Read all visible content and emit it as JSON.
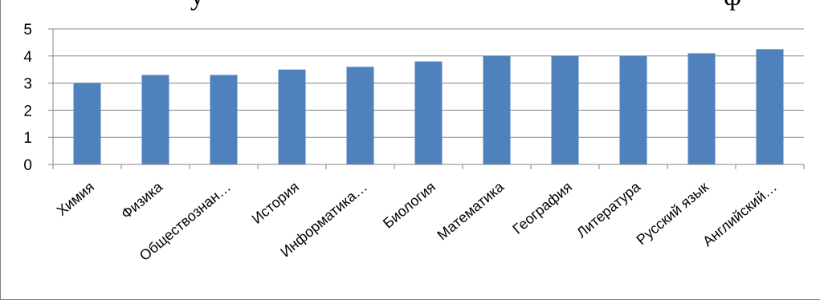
{
  "chart_data": {
    "type": "bar",
    "categories": [
      "Химия",
      "Физика",
      "Обществознан…",
      "История",
      "Информатика…",
      "Биология",
      "Математика",
      "География",
      "Литература",
      "Русский язык",
      "Английский…"
    ],
    "values": [
      3.0,
      3.3,
      3.3,
      3.5,
      3.6,
      3.8,
      4.0,
      4.0,
      4.0,
      4.1,
      4.25
    ],
    "ylim": [
      0,
      5
    ],
    "yticks": [
      0,
      1,
      2,
      3,
      4,
      5
    ],
    "grid": true,
    "legend": "none",
    "colors": {
      "bar": "#4f81bd",
      "grid": "#868686",
      "axis": "#868686"
    }
  }
}
